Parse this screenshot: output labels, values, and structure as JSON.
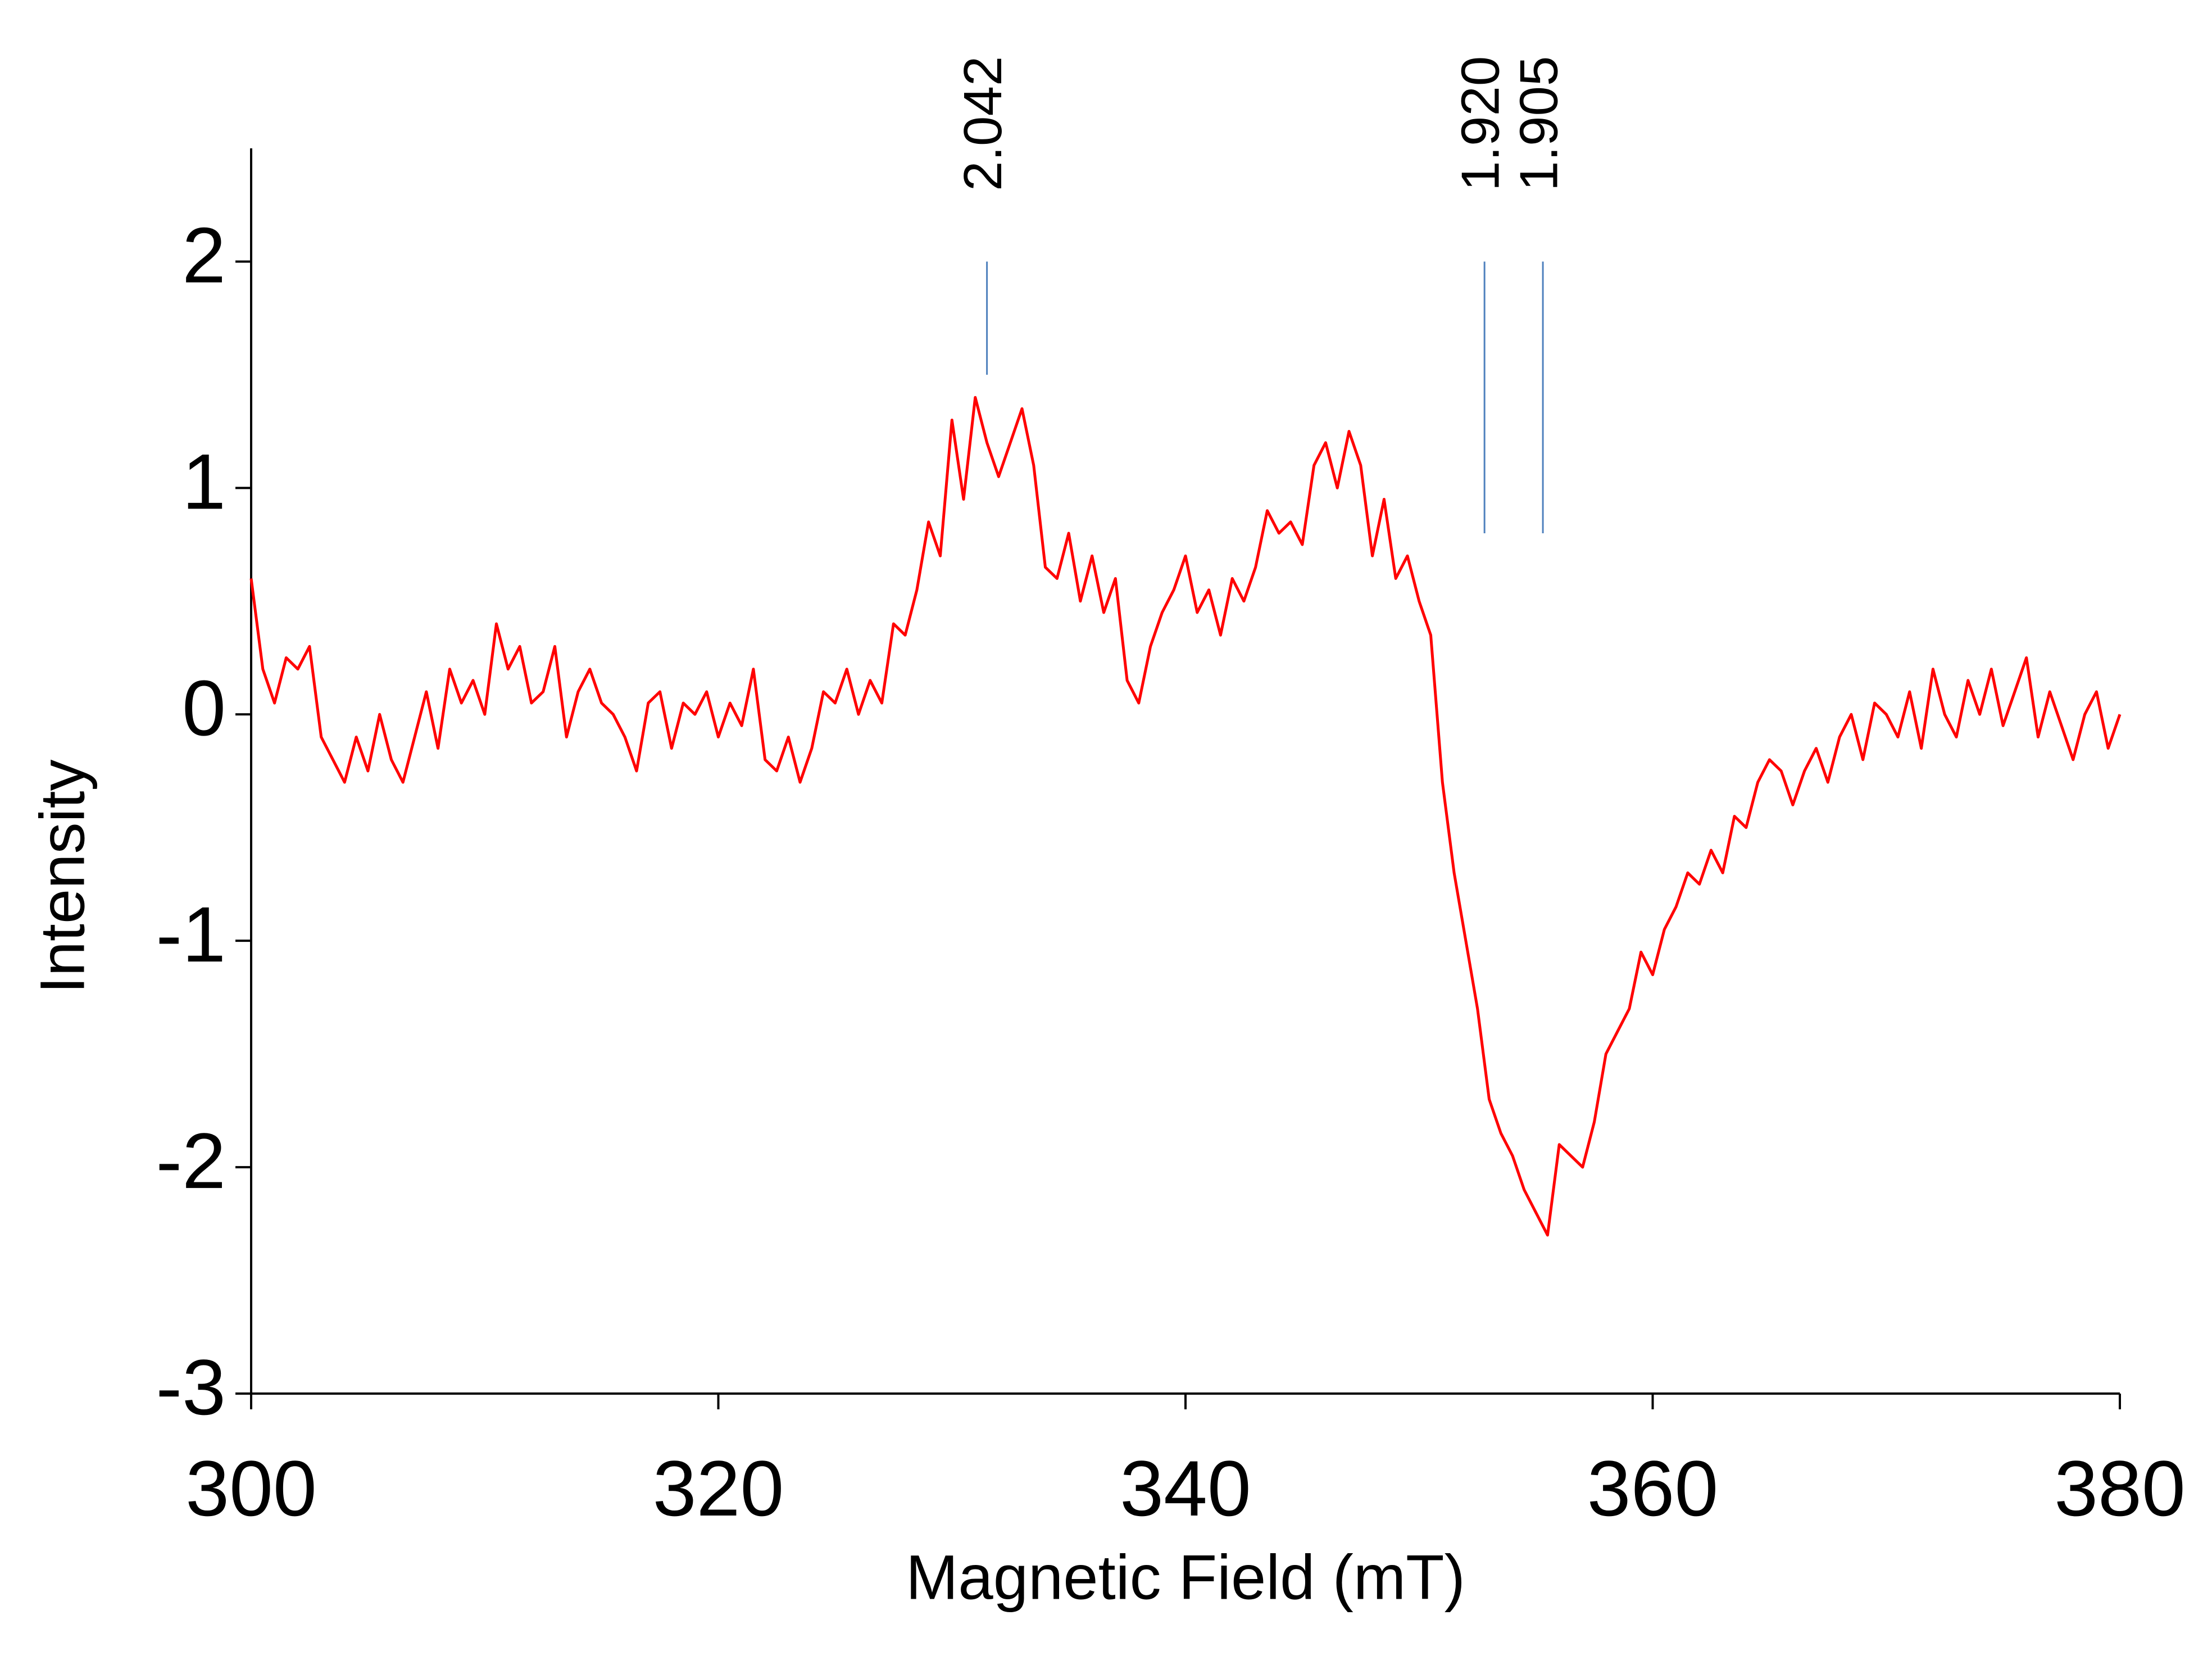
{
  "chart_data": {
    "type": "line",
    "x_label": "Magnetic Field (mT)",
    "y_label": "Intensity",
    "xlim": [
      300,
      380
    ],
    "xticks": [
      300,
      320,
      340,
      360,
      380
    ],
    "ylim": [
      -3,
      2.5
    ],
    "yticks": [
      -3,
      -2,
      -1,
      0,
      1,
      2
    ],
    "annotations": [
      {
        "label": "2.042",
        "x": 331.5,
        "y": [
          1.5,
          2
        ]
      },
      {
        "label": "1.920",
        "x": 352.8,
        "y": [
          0.8,
          2
        ]
      },
      {
        "label": "1.905",
        "x": 355.3,
        "y": [
          0.8,
          2
        ]
      }
    ],
    "annotation_color": "#4f81bd",
    "series": [
      {
        "color": "#ff0000",
        "x": [
          300,
          300.5,
          301,
          301.5,
          302,
          302.5,
          303,
          303.5,
          304,
          304.5,
          305,
          305.5,
          306,
          306.5,
          307,
          307.5,
          308,
          308.5,
          309,
          309.5,
          310,
          310.5,
          311,
          311.5,
          312,
          312.5,
          313,
          313.5,
          314,
          314.5,
          315,
          315.5,
          316,
          316.5,
          317,
          317.5,
          318,
          318.5,
          319,
          319.5,
          320,
          320.5,
          321,
          321.5,
          322,
          322.5,
          323,
          323.5,
          324,
          324.5,
          325,
          325.5,
          326,
          326.5,
          327,
          327.5,
          328,
          328.5,
          329,
          329.5,
          330,
          330.5,
          331,
          331.5,
          332,
          332.5,
          333,
          333.5,
          334,
          334.5,
          335,
          335.5,
          336,
          336.5,
          337,
          337.5,
          338,
          338.5,
          339,
          339.5,
          340,
          340.5,
          341,
          341.5,
          342,
          342.5,
          343,
          343.5,
          344,
          344.5,
          345,
          345.5,
          346,
          346.5,
          347,
          347.5,
          348,
          348.5,
          349,
          349.5,
          350,
          350.5,
          351,
          351.5,
          352,
          352.5,
          353,
          353.5,
          354,
          354.5,
          355,
          355.5,
          356,
          356.5,
          357,
          357.5,
          358,
          358.5,
          359,
          359.5,
          360,
          360.5,
          361,
          361.5,
          362,
          362.5,
          363,
          363.5,
          364,
          364.5,
          365,
          365.5,
          366,
          366.5,
          367,
          367.5,
          368,
          368.5,
          369,
          369.5,
          370,
          370.5,
          371,
          371.5,
          372,
          372.5,
          373,
          373.5,
          374,
          374.5,
          375,
          375.5,
          376,
          376.5,
          377,
          377.5,
          378,
          378.5,
          379,
          379.5,
          380
        ],
        "values": [
          0.6,
          0.2,
          0.05,
          0.25,
          0.2,
          0.3,
          -0.1,
          -0.2,
          -0.3,
          -0.1,
          -0.25,
          0.0,
          -0.2,
          -0.3,
          -0.1,
          0.1,
          -0.15,
          0.2,
          0.05,
          0.15,
          0.0,
          0.4,
          0.2,
          0.3,
          0.05,
          0.1,
          0.3,
          -0.1,
          0.1,
          0.2,
          0.05,
          0.0,
          -0.1,
          -0.25,
          0.05,
          0.1,
          -0.15,
          0.05,
          0.0,
          0.1,
          -0.1,
          0.05,
          -0.05,
          0.2,
          -0.2,
          -0.25,
          -0.1,
          -0.3,
          -0.15,
          0.1,
          0.05,
          0.2,
          0.0,
          0.15,
          0.05,
          0.4,
          0.35,
          0.55,
          0.85,
          0.7,
          1.3,
          0.95,
          1.4,
          1.2,
          1.05,
          1.2,
          1.35,
          1.1,
          0.65,
          0.6,
          0.8,
          0.5,
          0.7,
          0.45,
          0.6,
          0.15,
          0.05,
          0.3,
          0.45,
          0.55,
          0.7,
          0.45,
          0.55,
          0.35,
          0.6,
          0.5,
          0.65,
          0.9,
          0.8,
          0.85,
          0.75,
          1.1,
          1.2,
          1.0,
          1.25,
          1.1,
          0.7,
          0.95,
          0.6,
          0.7,
          0.5,
          0.35,
          -0.3,
          -0.7,
          -1.0,
          -1.3,
          -1.7,
          -1.85,
          -1.95,
          -2.1,
          -2.2,
          -2.3,
          -1.9,
          -1.95,
          -2.0,
          -1.8,
          -1.5,
          -1.4,
          -1.3,
          -1.05,
          -1.15,
          -0.95,
          -0.85,
          -0.7,
          -0.75,
          -0.6,
          -0.7,
          -0.45,
          -0.5,
          -0.3,
          -0.2,
          -0.25,
          -0.4,
          -0.25,
          -0.15,
          -0.3,
          -0.1,
          0.0,
          -0.2,
          0.05,
          0.0,
          -0.1,
          0.1,
          -0.15,
          0.2,
          0.0,
          -0.1,
          0.15,
          0.0,
          0.2,
          -0.05,
          0.1,
          0.25,
          -0.1,
          0.1,
          -0.05,
          -0.2,
          0.0,
          0.1,
          -0.15,
          0.0
        ]
      }
    ]
  }
}
